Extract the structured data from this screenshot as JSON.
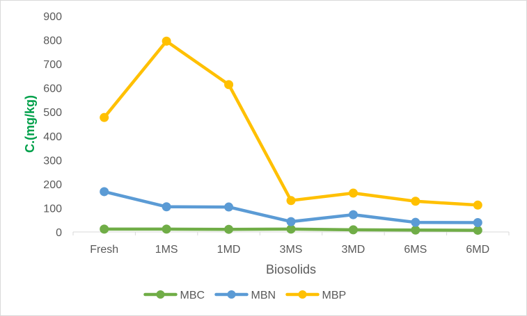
{
  "chart_data": {
    "type": "line",
    "title": "",
    "xlabel": "Biosolids",
    "ylabel": "C.(mg/kg)",
    "ylabel_color": "#00a04a",
    "categories": [
      "Fresh",
      "1MS",
      "1MD",
      "3MS",
      "3MD",
      "6MS",
      "6MD"
    ],
    "ylim": [
      0,
      900
    ],
    "yticks": [
      0,
      100,
      200,
      300,
      400,
      500,
      600,
      700,
      800,
      900
    ],
    "grid": false,
    "legend_position": "bottom",
    "series": [
      {
        "name": "MBC",
        "color": "#70ad47",
        "values": [
          12,
          12,
          11,
          12,
          9,
          8,
          7
        ]
      },
      {
        "name": "MBN",
        "color": "#5b9bd5",
        "values": [
          168,
          105,
          104,
          43,
          72,
          40,
          39
        ]
      },
      {
        "name": "MBP",
        "color": "#ffc000",
        "values": [
          477,
          795,
          614,
          131,
          162,
          128,
          112
        ]
      }
    ]
  }
}
